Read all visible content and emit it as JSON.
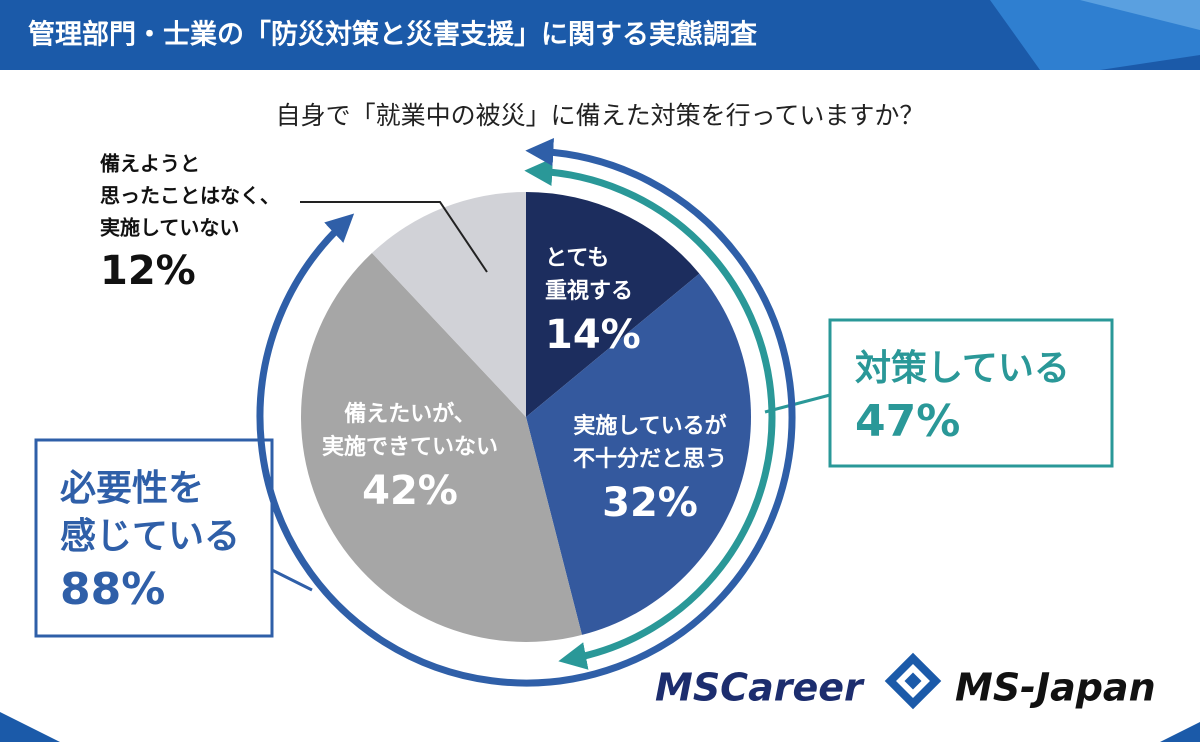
{
  "chart_data": {
    "type": "pie",
    "title": "管理部門・士業の「防災対策と災害支援」に関する実態調査",
    "subtitle": "自身で「就業中の被災」に備えた対策を行っていますか？",
    "categories": [
      [
        "とても",
        "重視する"
      ],
      [
        "実施しているが",
        "不十分だと思う"
      ],
      [
        "備えたいが、",
        "実施できていない"
      ],
      [
        "備えようと",
        "思ったことはなく、",
        "実施していない"
      ]
    ],
    "values": [
      14,
      32,
      42,
      12
    ],
    "value_labels": [
      "14%",
      "32%",
      "42%",
      "12%"
    ],
    "colors": [
      "#1c2d5e",
      "#34599e",
      "#a6a6a6",
      "#d1d2d7"
    ],
    "annotations": [
      {
        "lines": [
          "対策している"
        ],
        "value": 47,
        "value_label": "47%",
        "color": "#2a9898"
      },
      {
        "lines": [
          "必要性を",
          "感じている"
        ],
        "value": 88,
        "value_label": "88%",
        "color": "#2f5fa8"
      }
    ],
    "logos": [
      "MSCareer",
      "MS-Japan"
    ]
  }
}
